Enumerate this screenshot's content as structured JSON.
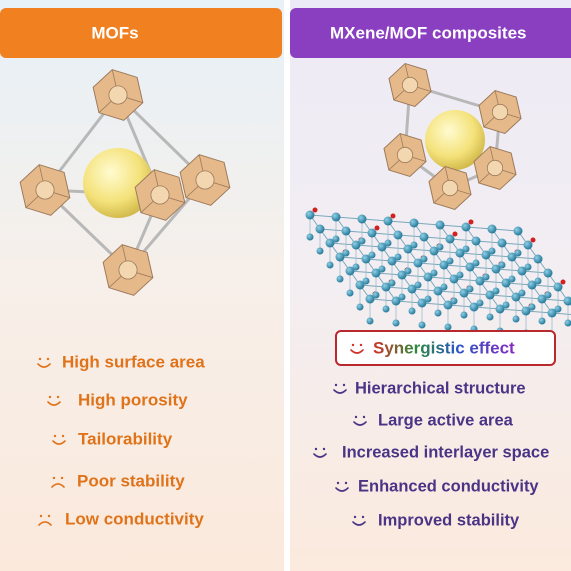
{
  "left": {
    "title": "MOFs",
    "items": [
      "High surface area",
      "High porosity",
      "Tailorability",
      "Poor stability",
      "Low conductivity"
    ]
  },
  "right": {
    "title": "MXene/MOF composites",
    "highlight": "Synergistic effect",
    "items": [
      "Hierarchical structure",
      "Large active area",
      "Increased interlayer space",
      "Enhanced conductivity",
      "Improved stability"
    ]
  }
}
